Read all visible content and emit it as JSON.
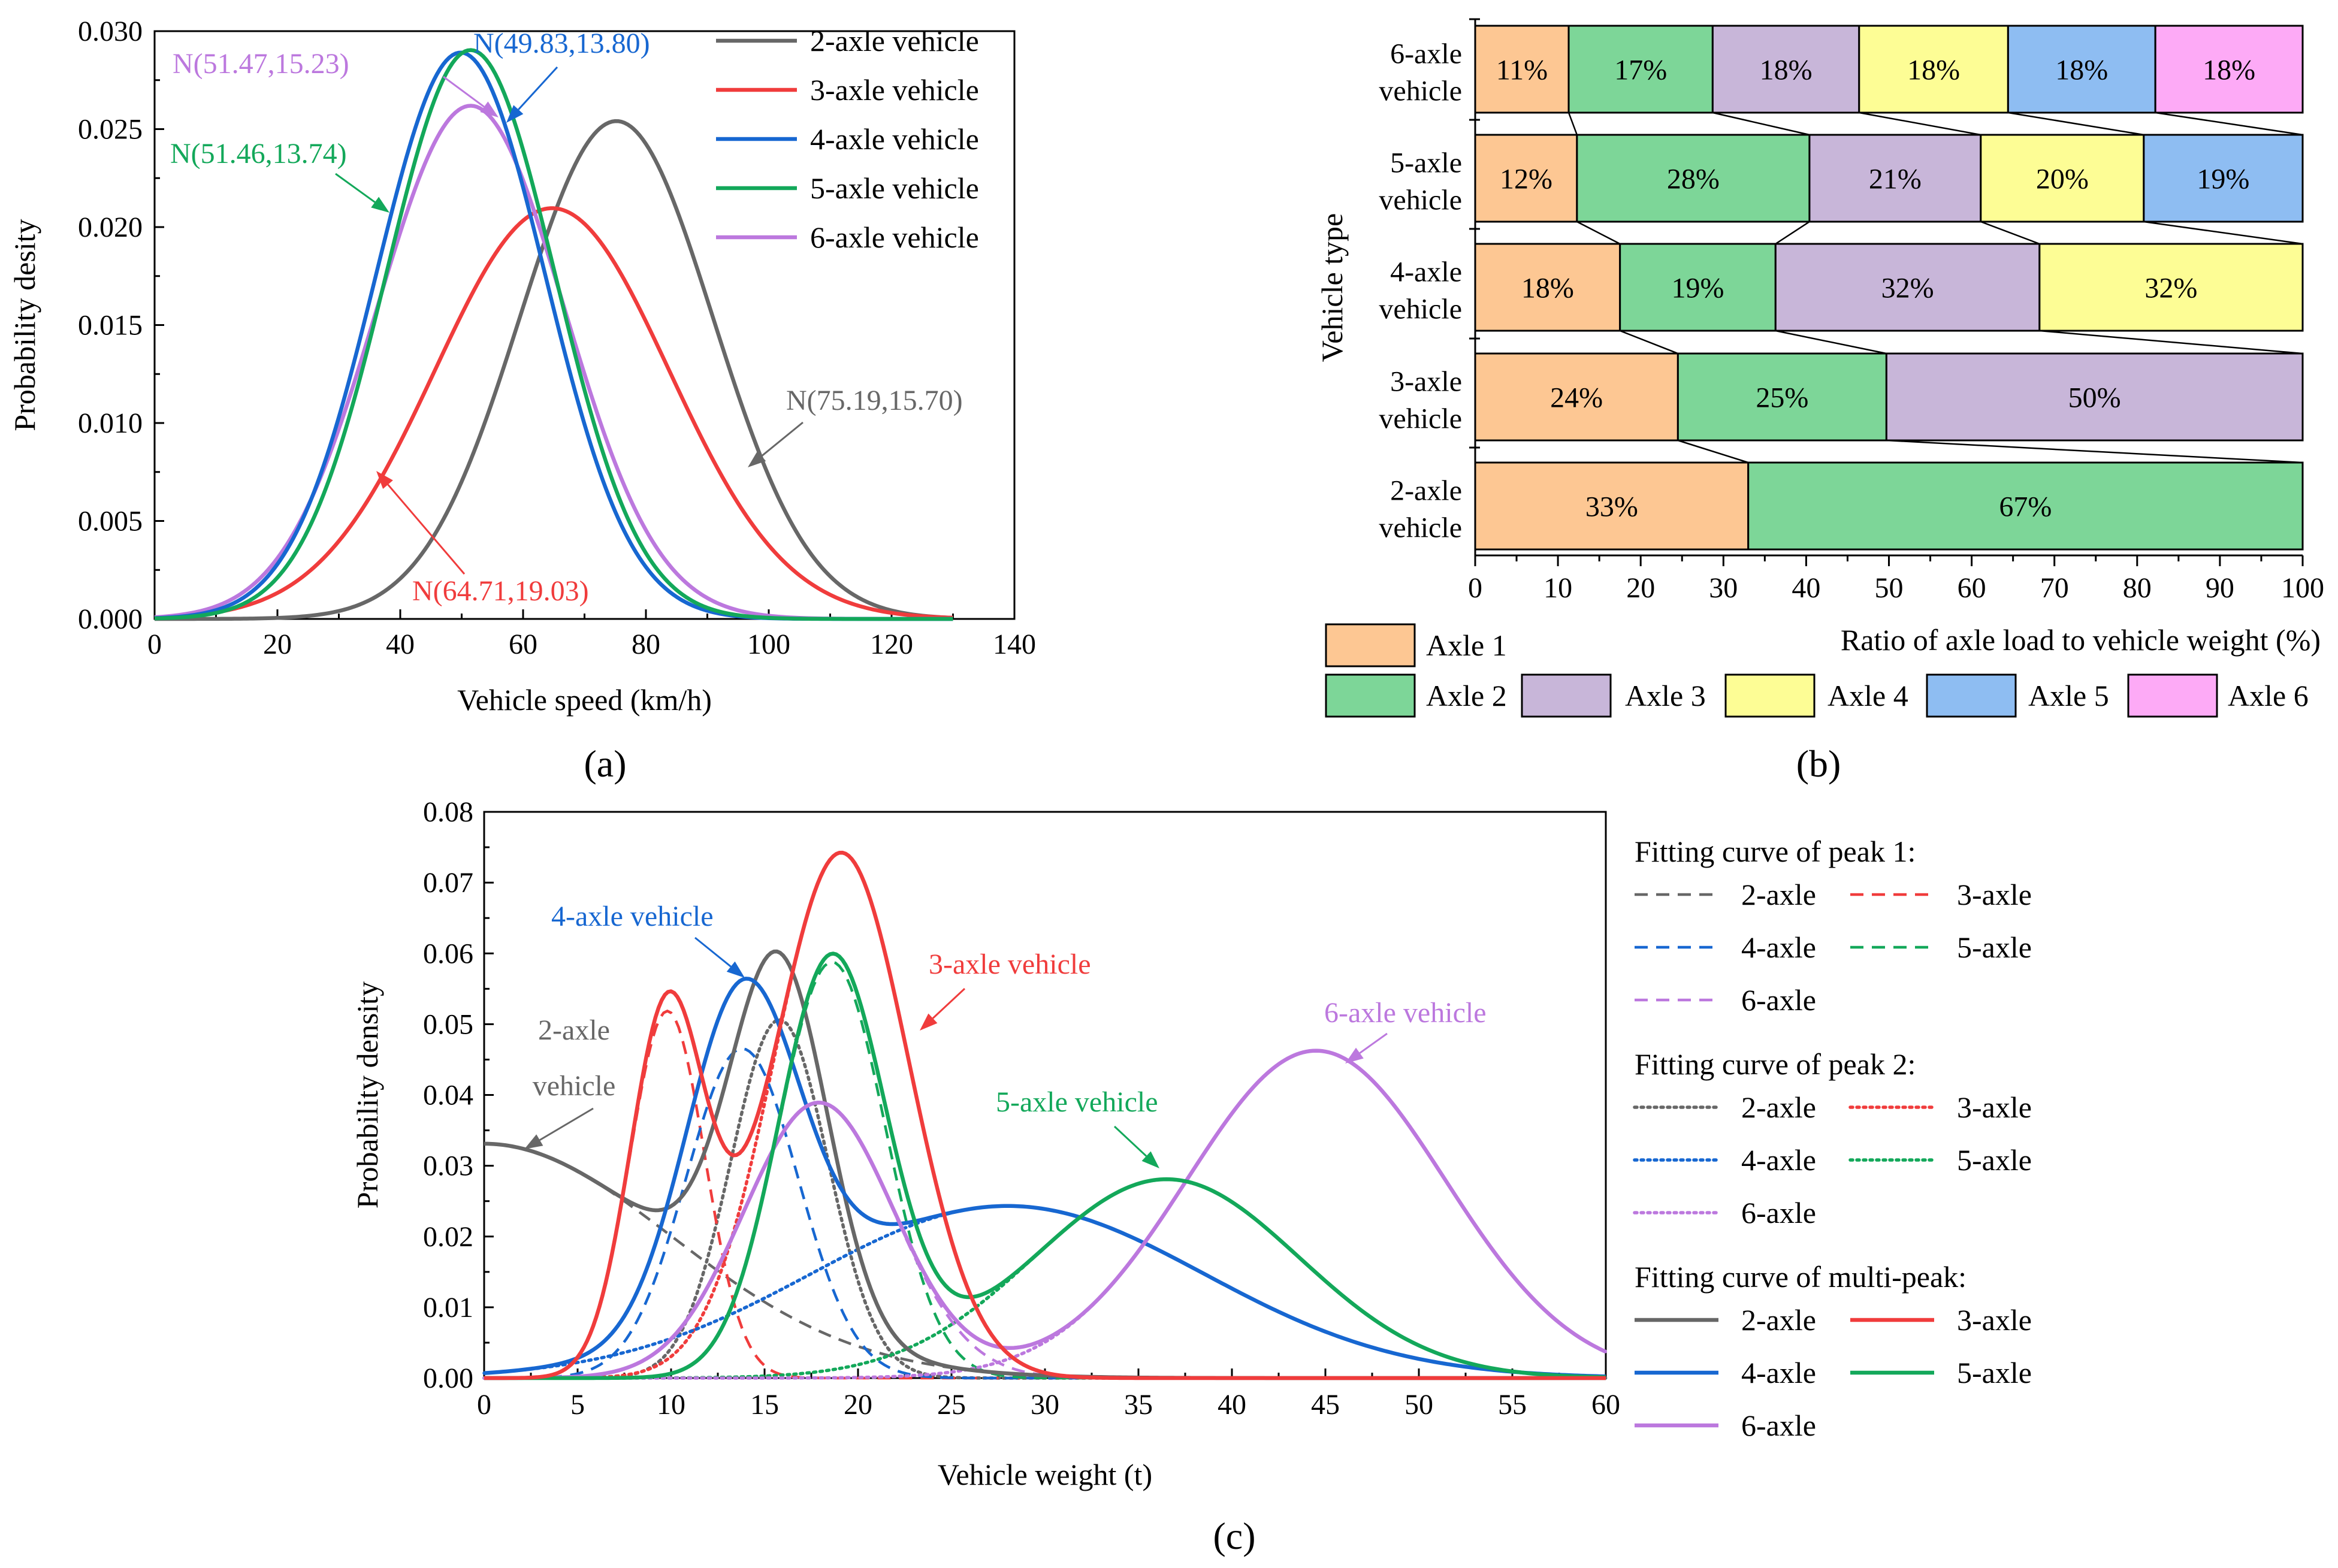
{
  "chart_data": [
    {
      "panel": "a",
      "type": "line",
      "caption": "(a)",
      "xlabel": "Vehicle speed (km/h)",
      "ylabel": "Probability desity",
      "xlim": [
        0,
        140
      ],
      "ylim": [
        0,
        0.03
      ],
      "xticks": [
        "0",
        "20",
        "40",
        "60",
        "80",
        "100",
        "120",
        "140"
      ],
      "yticks": [
        "0.000",
        "0.005",
        "0.010",
        "0.015",
        "0.020",
        "0.025",
        "0.030"
      ],
      "legend_position": "top-right",
      "series": [
        {
          "name": "2-axle vehicle",
          "color": "#676767",
          "mean": 75.19,
          "sd": 15.7,
          "label": "N(75.19,15.70)"
        },
        {
          "name": "3-axle vehicle",
          "color": "#f03c3c",
          "mean": 64.71,
          "sd": 19.03,
          "label": "N(64.71,19.03)"
        },
        {
          "name": "4-axle vehicle",
          "color": "#1767d1",
          "mean": 49.83,
          "sd": 13.8,
          "label": "N(49.83,13.80)"
        },
        {
          "name": "5-axle vehicle",
          "color": "#13a85a",
          "mean": 51.46,
          "sd": 13.74,
          "label": "N(51.46,13.74)"
        },
        {
          "name": "6-axle vehicle",
          "color": "#bc78de",
          "mean": 51.47,
          "sd": 15.23,
          "label": "N(51.47,15.23)"
        }
      ]
    },
    {
      "panel": "b",
      "type": "bar",
      "orientation": "horizontal-stacked",
      "caption": "(b)",
      "xlabel": "Ratio of axle load to vehicle weight (%)",
      "ylabel": "Vehicle type",
      "xlim": [
        0,
        100
      ],
      "xticks": [
        "0",
        "10",
        "20",
        "30",
        "40",
        "50",
        "60",
        "70",
        "80",
        "90",
        "100"
      ],
      "categories": [
        {
          "line1": "2-axle",
          "line2": "vehicle"
        },
        {
          "line1": "3-axle",
          "line2": "vehicle"
        },
        {
          "line1": "4-axle",
          "line2": "vehicle"
        },
        {
          "line1": "5-axle",
          "line2": "vehicle"
        },
        {
          "line1": "6-axle",
          "line2": "vehicle"
        }
      ],
      "axles": [
        {
          "name": "Axle 1",
          "color": "#fdc793"
        },
        {
          "name": "Axle 2",
          "color": "#7dd698"
        },
        {
          "name": "Axle 3",
          "color": "#c8b6d9"
        },
        {
          "name": "Axle 4",
          "color": "#fdfd95"
        },
        {
          "name": "Axle 5",
          "color": "#8ebdf2"
        },
        {
          "name": "Axle 6",
          "color": "#fdaaf6"
        }
      ],
      "values": [
        [
          33,
          67
        ],
        [
          24,
          25,
          50
        ],
        [
          18,
          19,
          32,
          32
        ],
        [
          12,
          28,
          21,
          20,
          19
        ],
        [
          11,
          17,
          18,
          18,
          18,
          18
        ]
      ],
      "stack_widths": [
        [
          33,
          67
        ],
        [
          24.5,
          25.2,
          50.3
        ],
        [
          17.5,
          18.8,
          31.9,
          31.8
        ],
        [
          12.3,
          28.1,
          20.7,
          19.7,
          19.2
        ],
        [
          11.3,
          17.4,
          17.7,
          18.0,
          17.8,
          17.8
        ]
      ],
      "labels": [
        [
          "33%",
          "67%"
        ],
        [
          "24%",
          "25%",
          "50%"
        ],
        [
          "18%",
          "19%",
          "32%",
          "32%"
        ],
        [
          "12%",
          "28%",
          "21%",
          "20%",
          "19%"
        ],
        [
          "11%",
          "17%",
          "18%",
          "18%",
          "18%",
          "18%"
        ]
      ],
      "legend_position": "bottom"
    },
    {
      "panel": "c",
      "type": "line",
      "caption": "(c)",
      "xlabel": "Vehicle weight (t)",
      "ylabel": "Probability density",
      "xlim": [
        0,
        60
      ],
      "ylim": [
        0,
        0.08
      ],
      "xticks": [
        "0",
        "5",
        "10",
        "15",
        "20",
        "25",
        "30",
        "35",
        "40",
        "45",
        "50",
        "55",
        "60"
      ],
      "yticks": [
        "0.00",
        "0.01",
        "0.02",
        "0.03",
        "0.04",
        "0.05",
        "0.06",
        "0.07",
        "0.08"
      ],
      "legend_position": "right",
      "legend_groups": [
        {
          "title": "Fitting curve of peak 1:",
          "style": "dashed"
        },
        {
          "title": "Fitting curve of peak 2:",
          "style": "dotted"
        },
        {
          "title": "Fitting curve of multi-peak:",
          "style": "solid"
        }
      ],
      "series": [
        {
          "name": "2-axle",
          "color": "#676767",
          "peak1": {
            "mu": 0.0,
            "sigma": 10.0,
            "area": 0.83
          },
          "peak2": {
            "mu": 15.8,
            "sigma": 2.6,
            "area": 0.33
          },
          "label_line1": "2-axle",
          "label_line2": "vehicle"
        },
        {
          "name": "3-axle",
          "color": "#f03c3c",
          "peak1": {
            "mu": 9.8,
            "sigma": 2.0,
            "area": 0.26
          },
          "peak2": {
            "mu": 19.1,
            "sigma": 3.6,
            "area": 0.67
          },
          "label": "3-axle vehicle"
        },
        {
          "name": "4-axle",
          "color": "#1767d1",
          "peak1": {
            "mu": 13.8,
            "sigma": 3.0,
            "area": 0.35
          },
          "peak2": {
            "mu": 28.0,
            "sigma": 10.5,
            "area": 0.64
          },
          "label": "4-axle vehicle"
        },
        {
          "name": "5-axle",
          "color": "#13a85a",
          "peak1": {
            "mu": 18.6,
            "sigma": 2.85,
            "area": 0.42
          },
          "peak2": {
            "mu": 36.5,
            "sigma": 7.1,
            "area": 0.5
          },
          "label": "5-axle vehicle"
        },
        {
          "name": "6-axle",
          "color": "#bc78de",
          "peak1": {
            "mu": 17.9,
            "sigma": 4.0,
            "area": 0.39
          },
          "peak2": {
            "mu": 44.5,
            "sigma": 6.9,
            "area": 0.8
          },
          "label": "6-axle vehicle"
        }
      ]
    }
  ]
}
